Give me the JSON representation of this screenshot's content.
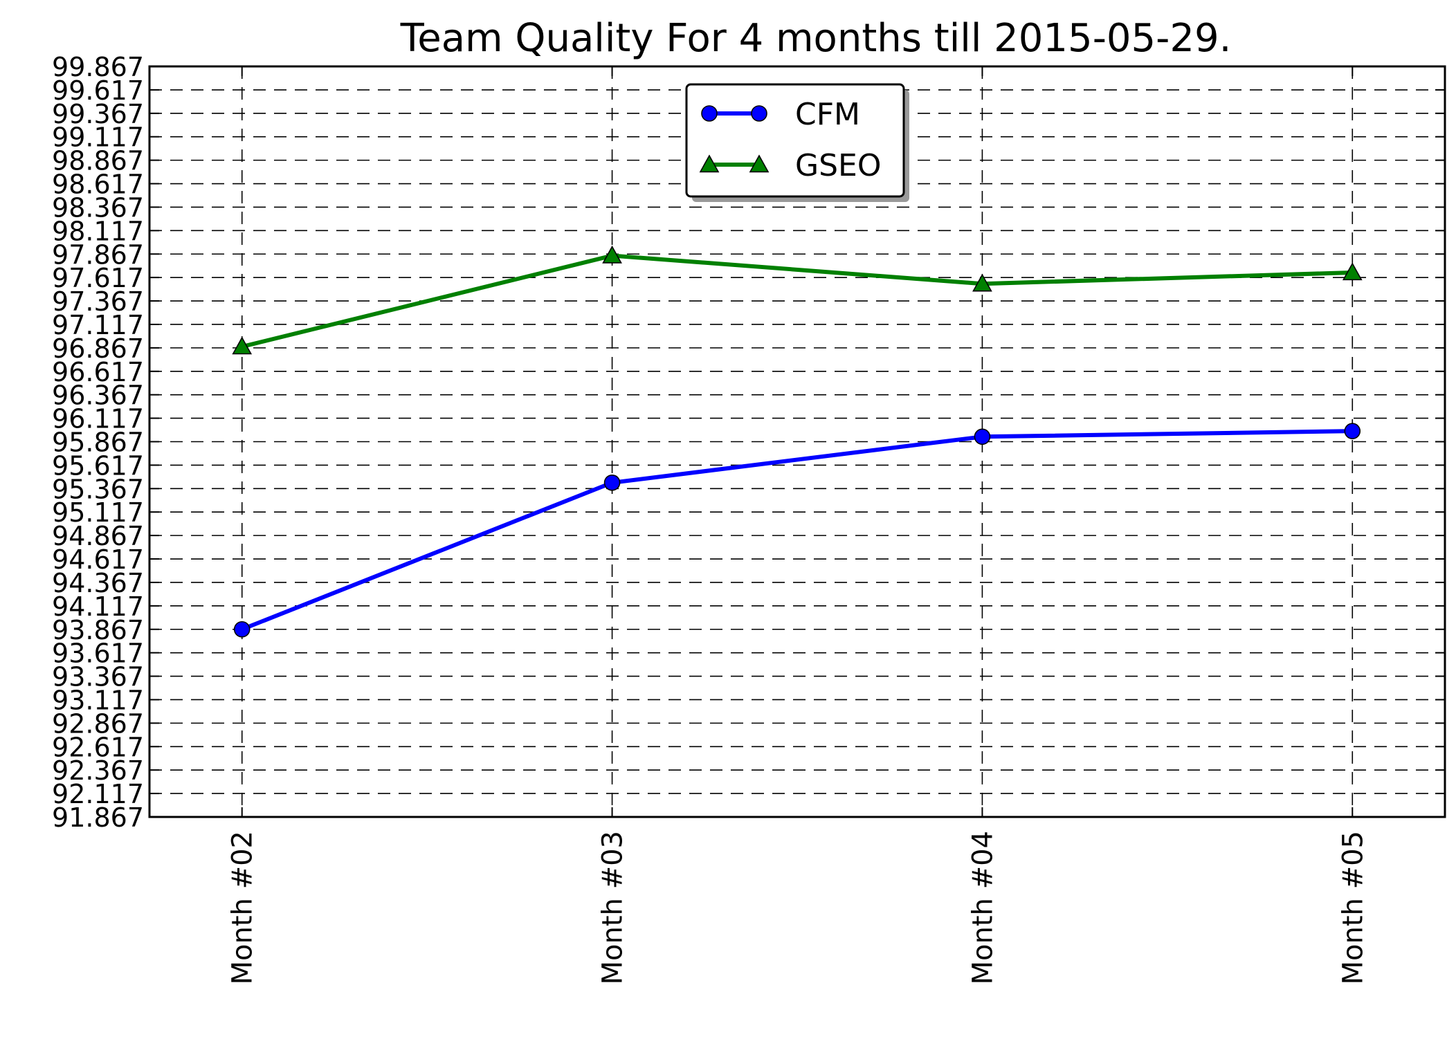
{
  "chart_data": {
    "type": "line",
    "title": "Team Quality For 4 months till 2015-05-29.",
    "xlabel": "",
    "ylabel": "",
    "categories": [
      "Month #02",
      "Month #03",
      "Month #04",
      "Month #05"
    ],
    "series": [
      {
        "name": "CFM",
        "values": [
          93.867,
          95.43,
          95.92,
          95.98
        ],
        "color": "#0000ff",
        "marker": "circle"
      },
      {
        "name": "GSEO",
        "values": [
          96.88,
          97.85,
          97.55,
          97.67
        ],
        "color": "#008000",
        "marker": "triangle"
      }
    ],
    "ylim": [
      91.867,
      99.867
    ],
    "yticks": [
      "91.867",
      "92.117",
      "92.367",
      "92.617",
      "92.867",
      "93.117",
      "93.367",
      "93.617",
      "93.867",
      "94.117",
      "94.367",
      "94.617",
      "94.867",
      "95.117",
      "95.367",
      "95.617",
      "95.867",
      "96.117",
      "96.367",
      "96.617",
      "96.867",
      "97.117",
      "97.367",
      "97.617",
      "97.867",
      "98.117",
      "98.367",
      "98.617",
      "98.867",
      "99.117",
      "99.367",
      "99.617",
      "99.867"
    ],
    "grid": true,
    "legend_position": "top-center"
  }
}
